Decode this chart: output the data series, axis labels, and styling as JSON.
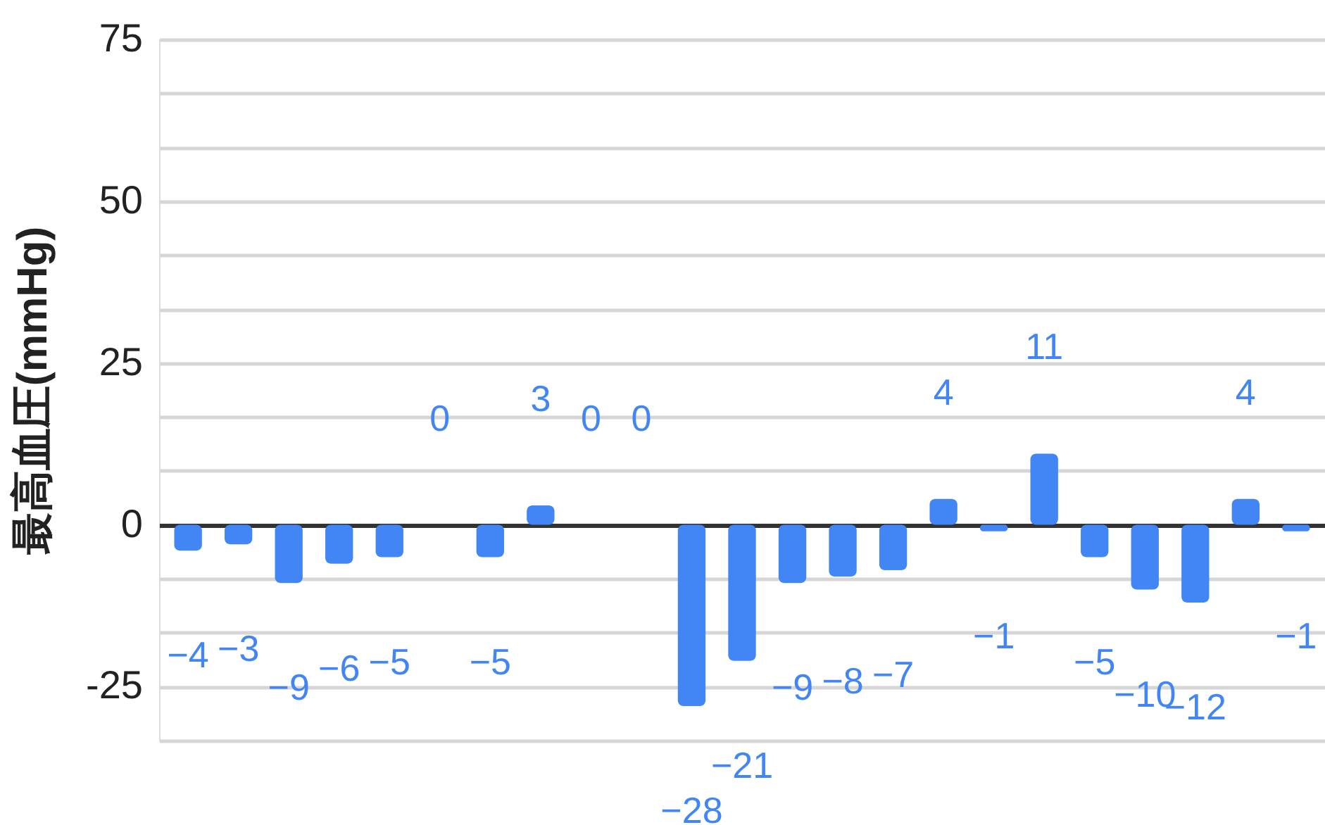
{
  "chart_data": {
    "type": "bar",
    "ylabel": "最高血圧(mmHg)",
    "categories": [
      null,
      null,
      null,
      null,
      null,
      null,
      null,
      null,
      null,
      null,
      null,
      null,
      null,
      null,
      null,
      null,
      null,
      null,
      null,
      null,
      null,
      null,
      null
    ],
    "values": [
      -4,
      -3,
      -9,
      -6,
      -5,
      0,
      -5,
      3,
      0,
      0,
      -28,
      -21,
      -9,
      -8,
      -7,
      4,
      -1,
      11,
      -5,
      -10,
      -12,
      4,
      -1
    ],
    "color": "#4285f4",
    "ylim": [
      -33.33,
      75
    ],
    "yticks": [
      {
        "value": -33.33,
        "label": null
      },
      -25,
      {
        "value": -16.67,
        "label": null
      },
      {
        "value": -8.33,
        "label": null
      },
      0,
      {
        "value": 8.33,
        "label": null
      },
      {
        "value": 16.67,
        "label": null
      },
      25,
      {
        "value": 33.33,
        "label": null
      },
      {
        "value": 41.67,
        "label": null
      },
      50,
      {
        "value": 58.33,
        "label": null
      },
      {
        "value": 66.67,
        "label": null
      },
      75
    ],
    "grid": "y",
    "data_labels": true,
    "tick_labels": "y"
  }
}
